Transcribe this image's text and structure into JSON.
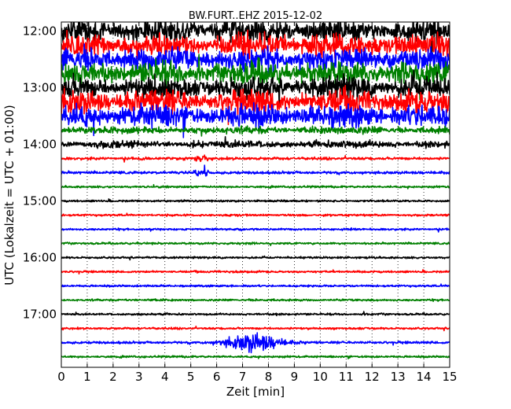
{
  "chart_data": {
    "type": "line",
    "title": "BW.FURT..EHZ 2015-12-02",
    "xlabel": "Zeit  [min]",
    "ylabel": "UTC (Lokalzeit = UTC + 01:00)",
    "xlim": [
      0,
      15
    ],
    "x_ticks": [
      "0",
      "1",
      "2",
      "3",
      "4",
      "5",
      "6",
      "7",
      "8",
      "9",
      "10",
      "11",
      "12",
      "13",
      "14",
      "15"
    ],
    "y_ticks": [
      "12:00",
      "13:00",
      "14:00",
      "15:00",
      "16:00",
      "17:00"
    ],
    "grid": {
      "vertical_dotted_at_minutes": true
    },
    "trace_interval_minutes": 15,
    "series": [
      {
        "start": "12:00",
        "color": "#000000",
        "activity": "high"
      },
      {
        "start": "12:15",
        "color": "#ff0000",
        "activity": "high"
      },
      {
        "start": "12:30",
        "color": "#0000ff",
        "activity": "high"
      },
      {
        "start": "12:45",
        "color": "#008000",
        "activity": "high"
      },
      {
        "start": "13:00",
        "color": "#000000",
        "activity": "high"
      },
      {
        "start": "13:15",
        "color": "#ff0000",
        "activity": "high"
      },
      {
        "start": "13:30",
        "color": "#0000ff",
        "activity": "high"
      },
      {
        "start": "13:45",
        "color": "#008000",
        "activity": "elevated"
      },
      {
        "start": "14:00",
        "color": "#000000",
        "activity": "elevated"
      },
      {
        "start": "14:15",
        "color": "#ff0000",
        "activity": "moderate"
      },
      {
        "start": "14:30",
        "color": "#0000ff",
        "activity": "moderate"
      },
      {
        "start": "14:45",
        "color": "#008000",
        "activity": "low"
      },
      {
        "start": "15:00",
        "color": "#000000",
        "activity": "low"
      },
      {
        "start": "15:15",
        "color": "#ff0000",
        "activity": "low"
      },
      {
        "start": "15:30",
        "color": "#0000ff",
        "activity": "low"
      },
      {
        "start": "15:45",
        "color": "#008000",
        "activity": "low"
      },
      {
        "start": "16:00",
        "color": "#000000",
        "activity": "low"
      },
      {
        "start": "16:15",
        "color": "#ff0000",
        "activity": "low"
      },
      {
        "start": "16:30",
        "color": "#0000ff",
        "activity": "low"
      },
      {
        "start": "16:45",
        "color": "#008000",
        "activity": "low"
      },
      {
        "start": "17:00",
        "color": "#000000",
        "activity": "low"
      },
      {
        "start": "17:15",
        "color": "#ff0000",
        "activity": "low"
      },
      {
        "start": "17:30",
        "color": "#0000ff",
        "activity": "event"
      },
      {
        "start": "17:45",
        "color": "#008000",
        "activity": "low"
      }
    ]
  }
}
